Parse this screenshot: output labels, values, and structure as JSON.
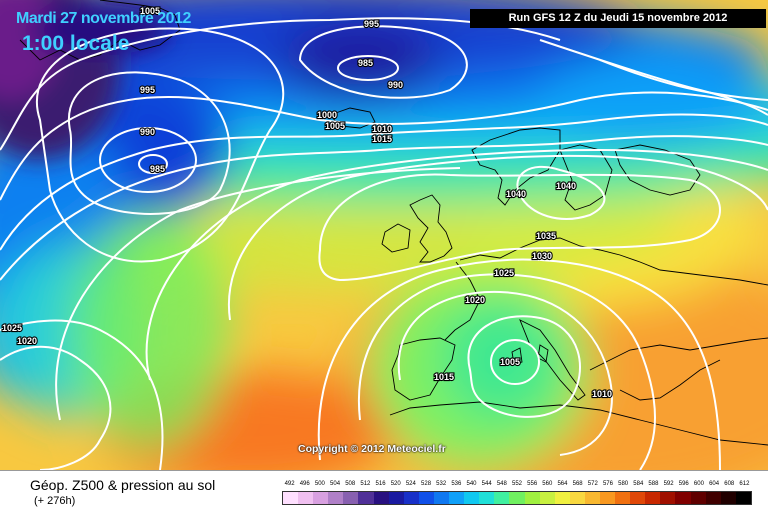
{
  "header": {
    "date": "Mardi 27 novembre 2012",
    "time": "1:00 locale",
    "run": "Run GFS 12 Z du Jeudi 15 novembre 2012"
  },
  "copyright": "Copyright © 2012 Meteociel.fr",
  "legend": {
    "title": "Géop. Z500 & pression au sol",
    "subtitle": "(+ 276h)",
    "scale": [
      "492",
      "496",
      "500",
      "504",
      "508",
      "512",
      "516",
      "520",
      "524",
      "528",
      "532",
      "536",
      "540",
      "544",
      "548",
      "552",
      "556",
      "560",
      "564",
      "568",
      "572",
      "576",
      "580",
      "584",
      "588",
      "592",
      "596",
      "600",
      "604",
      "608",
      "612"
    ],
    "colors": [
      "#ffe0ff",
      "#f0c0f0",
      "#d8a0e0",
      "#b080c8",
      "#8860b0",
      "#503098",
      "#281080",
      "#1a1aa0",
      "#1830c8",
      "#1050e8",
      "#1078f0",
      "#10a0f8",
      "#10c8f0",
      "#20e0d8",
      "#40f0a0",
      "#70f060",
      "#a0f040",
      "#c8f040",
      "#f0f040",
      "#f8d840",
      "#f8b830",
      "#f89820",
      "#f07010",
      "#e04808",
      "#c82800",
      "#a01000",
      "#800000",
      "#600000",
      "#400000",
      "#200000",
      "#000000"
    ]
  },
  "isobars": [
    {
      "text": "1005"
    },
    {
      "text": "995"
    },
    {
      "text": "985"
    },
    {
      "text": "990"
    },
    {
      "text": "995"
    },
    {
      "text": "990"
    },
    {
      "text": "985"
    },
    {
      "text": "1000"
    },
    {
      "text": "1005"
    },
    {
      "text": "1010"
    },
    {
      "text": "1015"
    },
    {
      "text": "1040"
    },
    {
      "text": "1040"
    },
    {
      "text": "1035"
    },
    {
      "text": "1030"
    },
    {
      "text": "1025"
    },
    {
      "text": "1020"
    },
    {
      "text": "1005"
    },
    {
      "text": "1015"
    },
    {
      "text": "1010"
    },
    {
      "text": "1025"
    },
    {
      "text": "1020"
    }
  ]
}
